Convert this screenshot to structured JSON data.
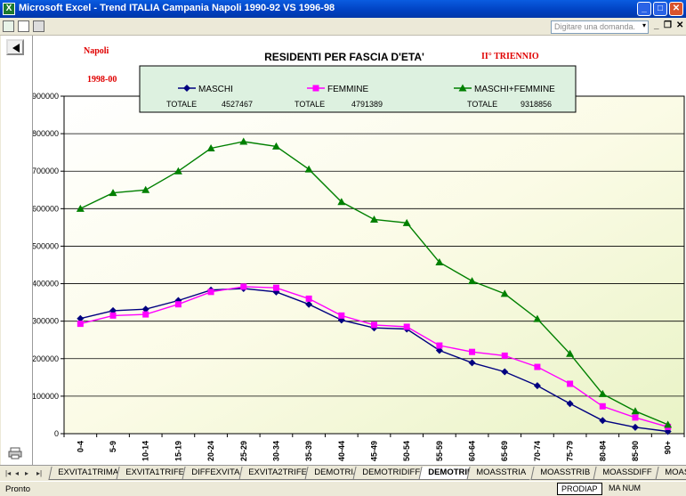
{
  "window": {
    "title": "Microsoft Excel - Trend ITALIA Campania Napoli 1990-92 VS 1996-98",
    "app_icon_letter": "X",
    "min_label": "_",
    "max_label": "□",
    "close_label": "✕"
  },
  "toolbar": {
    "help_placeholder": "Digitare una domanda.",
    "help_arrow": "▾",
    "doc_min": "_",
    "doc_restore": "❐",
    "doc_close": "✕"
  },
  "chart_data": {
    "type": "line",
    "title": "RESIDENTI PER FASCIA D'ETA'",
    "place_label": "Napoli",
    "period_label": "1998-00",
    "triennio_label": "II° TRIENNIO",
    "categories": [
      "0-4",
      "5-9",
      "10-14",
      "15-19",
      "20-24",
      "25-29",
      "30-34",
      "35-39",
      "40-44",
      "45-49",
      "50-54",
      "55-59",
      "60-64",
      "65-69",
      "70-74",
      "75-79",
      "80-84",
      "85-90",
      "90+"
    ],
    "ylim": [
      0,
      900000
    ],
    "yticks": [
      "0",
      "100000",
      "200000",
      "300000",
      "400000",
      "500000",
      "600000",
      "700000",
      "800000",
      "900000"
    ],
    "series": [
      {
        "name": "MASCHI",
        "color": "#000080",
        "marker": "diamond",
        "total_label": "TOTALE",
        "total": "4527467",
        "values": [
          307000,
          328000,
          332000,
          355000,
          383000,
          387000,
          378000,
          345000,
          303000,
          282000,
          279000,
          222000,
          189000,
          165000,
          128000,
          80000,
          35000,
          17000,
          6000
        ]
      },
      {
        "name": "FEMMINE",
        "color": "#ff00ff",
        "marker": "square",
        "total_label": "TOTALE",
        "total": "4791389",
        "values": [
          293000,
          315000,
          318000,
          345000,
          378000,
          392000,
          389000,
          360000,
          315000,
          290000,
          285000,
          235000,
          218000,
          208000,
          178000,
          133000,
          73000,
          43000,
          18000
        ]
      },
      {
        "name": "MASCHI+FEMMINE",
        "color": "#008000",
        "marker": "triangle",
        "total_label": "TOTALE",
        "total": "9318856",
        "values": [
          600000,
          642000,
          650000,
          700000,
          761000,
          779000,
          766000,
          705000,
          618000,
          571000,
          562000,
          457000,
          407000,
          373000,
          306000,
          213000,
          106000,
          60000,
          24000
        ]
      }
    ]
  },
  "sheet_tabs": [
    "EXVITA1TRIMA",
    "EXVITA1TRIFE",
    "DIFFEXVITA",
    "EXVITA2TRIFE",
    "DEMOTRIA",
    "DEMOTRIDIFF",
    "DEMOTRIB",
    "MOASSTRIA",
    "MOASSTRIB",
    "MOASSDIFF",
    "MOASSCA"
  ],
  "active_tab": "DEMOTRIB",
  "nav": [
    "|◂",
    "◂",
    "▸",
    "▸|"
  ],
  "status": {
    "ready": "Pronto",
    "prodiap": "PRODIAP",
    "modes": "MA NUM"
  }
}
